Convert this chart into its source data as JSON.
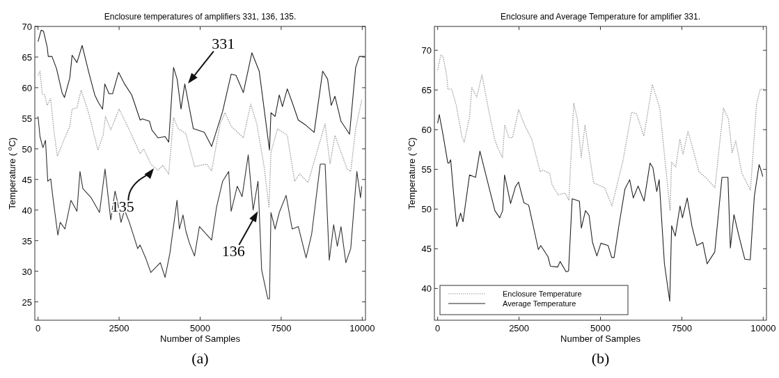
{
  "chart_data": [
    {
      "type": "line",
      "title": "Enclosure temperatures of amplifiers 331, 136, 135.",
      "xlabel": "Number of Samples",
      "ylabel": "Temperature ( $^{o}$C)",
      "xlim": [
        -100,
        10100
      ],
      "ylim": [
        22,
        70
      ],
      "xticks": [
        0,
        2500,
        5000,
        7500,
        10000
      ],
      "yticks": [
        25,
        30,
        35,
        40,
        45,
        50,
        55,
        60,
        65,
        70
      ],
      "grid": false,
      "legend": false,
      "annotations": [
        {
          "text": "331",
          "x": 4600,
          "y": 60.5
        },
        {
          "text": "135",
          "x": 3600,
          "y": 47
        },
        {
          "text": "136",
          "x": 6800,
          "y": 40
        },
        "(a)"
      ],
      "series": [
        {
          "color": "#222222",
          "line_style": "solid",
          "x": [
            0,
            95,
            170,
            280,
            315,
            430,
            570,
            740,
            815,
            980,
            1050,
            1200,
            1360,
            1570,
            1750,
            1860,
            1990,
            2060,
            2190,
            2300,
            2485,
            2670,
            2890,
            3150,
            3220,
            3440,
            3510,
            3700,
            3920,
            4030,
            4180,
            4290,
            4410,
            4526,
            4790,
            5128,
            5354,
            5693,
            5956,
            6107,
            6333,
            6596,
            6822,
            7139,
            7184,
            7312,
            7440,
            7538,
            7688,
            7839,
            8027,
            8253,
            8517,
            8780,
            8931,
            9044,
            9157,
            9345,
            9608,
            9797,
            9910,
            10080
          ],
          "values": [
            67.5,
            69.4,
            69.2,
            66.7,
            65.1,
            65.1,
            63.1,
            59.2,
            58.4,
            61.6,
            65.3,
            64.1,
            66.9,
            62.4,
            58.8,
            57.6,
            56.5,
            60.6,
            59.0,
            59.0,
            62.5,
            60.6,
            58.8,
            54.7,
            54.9,
            54.5,
            53.1,
            51.8,
            52.0,
            51.1,
            63.3,
            61.4,
            56.5,
            60.6,
            53.3,
            52.7,
            50.4,
            56.1,
            62.2,
            62.0,
            59.2,
            65.7,
            62.7,
            49.8,
            55.9,
            55.3,
            58.8,
            56.9,
            59.8,
            57.6,
            54.7,
            53.9,
            52.7,
            62.7,
            61.4,
            57.1,
            58.6,
            54.5,
            52.4,
            63.3,
            65.1,
            65.1
          ]
        },
        {
          "color": "#999999",
          "line_style": "dotted",
          "x": [
            0,
            60,
            130,
            206,
            280,
            390,
            500,
            596,
            794,
            980,
            1050,
            1200,
            1330,
            1570,
            1846,
            2007,
            2080,
            2243,
            2500,
            2816,
            3150,
            3260,
            3480,
            3700,
            3850,
            4030,
            4180,
            4320,
            4563,
            4827,
            5203,
            5354,
            5617,
            5768,
            5956,
            6333,
            6559,
            6747,
            6973,
            7124,
            7184,
            7387,
            7688,
            7914,
            8065,
            8328,
            8554,
            8855,
            9006,
            9157,
            9533,
            9645,
            9797,
            9985
          ],
          "values": [
            62,
            62.7,
            59.0,
            58.8,
            57.1,
            58.2,
            52.5,
            48.8,
            51.4,
            53.7,
            56.5,
            56.7,
            59.6,
            55.7,
            49.8,
            52.2,
            55.3,
            53.1,
            56.5,
            53.1,
            49.2,
            50.0,
            47.5,
            46.5,
            47.3,
            45.9,
            55.1,
            53.3,
            52.5,
            47.1,
            47.5,
            46.4,
            54.1,
            55.9,
            53.7,
            51.8,
            57.3,
            54.1,
            47.1,
            40.4,
            49.4,
            53.3,
            52.2,
            44.7,
            45.9,
            44.5,
            48.6,
            54.1,
            47.5,
            52.2,
            46.7,
            46.3,
            53.3,
            58.0
          ]
        },
        {
          "color": "#333333",
          "line_style": "solid",
          "x": [
            0,
            60,
            150,
            230,
            300,
            390,
            460,
            610,
            684,
            830,
            1015,
            1200,
            1294,
            1382,
            1640,
            1897,
            2066,
            2243,
            2375,
            2449,
            2559,
            2669,
            2816,
            3074,
            3147,
            3331,
            3478,
            3772,
            3919,
            4066,
            4287,
            4360,
            4471,
            4563,
            4676,
            4827,
            4977,
            5354,
            5504,
            5693,
            5881,
            5956,
            6145,
            6295,
            6483,
            6634,
            6785,
            6898,
            7086,
            7139,
            7184,
            7312,
            7440,
            7651,
            7839,
            8027,
            8268,
            8441,
            8705,
            8855,
            8983,
            9118,
            9232,
            9345,
            9495,
            9645,
            9834,
            9947,
            9985
          ],
          "values": [
            55.3,
            52.0,
            50.2,
            51.4,
            44.7,
            45.1,
            42.0,
            35.9,
            38.0,
            36.9,
            41.6,
            39.8,
            46.3,
            43.5,
            42.0,
            39.6,
            46.7,
            38.4,
            43.1,
            41.4,
            38.0,
            40.0,
            38.0,
            33.7,
            34.3,
            32.0,
            29.8,
            31.4,
            29.0,
            32.9,
            41.6,
            36.9,
            39.2,
            36.5,
            34.5,
            32.5,
            37.3,
            35.1,
            40.4,
            44.7,
            46.3,
            39.8,
            43.9,
            42.2,
            49.0,
            40.0,
            44.7,
            30.2,
            25.5,
            25.5,
            39.6,
            36.9,
            39.6,
            42.4,
            36.9,
            37.3,
            32.2,
            36.1,
            47.5,
            47.5,
            31.8,
            37.6,
            34.1,
            37.3,
            31.4,
            33.7,
            46.3,
            42.0,
            43.9
          ]
        }
      ]
    },
    {
      "type": "line",
      "title": "Enclosure and Average Temperature for amplifier 331.",
      "xlabel": "Number of Samples",
      "ylabel": "Temperature ( $^{o}$C)",
      "xlim": [
        -100,
        10100
      ],
      "ylim": [
        36,
        73
      ],
      "xticks": [
        0,
        2500,
        5000,
        7500,
        10000
      ],
      "yticks": [
        40,
        45,
        50,
        55,
        60,
        65,
        70
      ],
      "grid": false,
      "legend": "bottom left",
      "annotations": [
        "(b)"
      ],
      "series": [
        {
          "name": "Enclosure Temperature",
          "color": "#999999",
          "line_style": "dotted",
          "x": [
            0,
            95,
            170,
            280,
            315,
            430,
            570,
            740,
            815,
            980,
            1050,
            1200,
            1360,
            1570,
            1750,
            1860,
            1990,
            2060,
            2190,
            2300,
            2485,
            2670,
            2890,
            3150,
            3220,
            3440,
            3510,
            3700,
            3920,
            4030,
            4180,
            4290,
            4410,
            4526,
            4790,
            5128,
            5354,
            5693,
            5956,
            6107,
            6333,
            6596,
            6822,
            7139,
            7184,
            7312,
            7440,
            7538,
            7688,
            7839,
            8027,
            8253,
            8517,
            8780,
            8931,
            9044,
            9157,
            9345,
            9608,
            9797,
            9910,
            10058
          ],
          "values": [
            67.5,
            69.4,
            69.2,
            66.7,
            65.1,
            65.1,
            63.1,
            59.2,
            58.4,
            61.6,
            65.3,
            64.1,
            66.9,
            62.4,
            58.8,
            57.6,
            56.5,
            60.6,
            59.0,
            59.0,
            62.5,
            60.6,
            58.8,
            54.7,
            54.9,
            54.5,
            53.1,
            51.8,
            52.0,
            51.1,
            63.3,
            61.4,
            56.5,
            60.6,
            53.3,
            52.7,
            50.4,
            56.1,
            62.2,
            62.0,
            59.2,
            65.7,
            62.7,
            49.8,
            55.9,
            55.3,
            58.8,
            56.9,
            59.8,
            57.6,
            54.7,
            53.9,
            52.7,
            62.7,
            61.4,
            57.1,
            58.6,
            54.5,
            52.4,
            63.3,
            65.1,
            65.1
          ]
        },
        {
          "name": "Average Temperature",
          "color": "#222222",
          "line_style": "solid",
          "x": [
            0,
            50,
            163,
            312,
            349,
            400,
            497,
            586,
            705,
            779,
            979,
            1165,
            1298,
            1610,
            1758,
            1906,
            1996,
            2055,
            2240,
            2389,
            2485,
            2648,
            2796,
            3093,
            3167,
            3390,
            3464,
            3687,
            3761,
            3947,
            4021,
            4132,
            4354,
            4414,
            4540,
            4651,
            4757,
            4890,
            5015,
            5236,
            5346,
            5420,
            5567,
            5751,
            5898,
            6009,
            6156,
            6340,
            6524,
            6612,
            6730,
            6804,
            6966,
            7128,
            7187,
            7298,
            7445,
            7519,
            7666,
            7813,
            7960,
            8144,
            8277,
            8512,
            8733,
            8917,
            8991,
            9101,
            9248,
            9433,
            9602,
            9727,
            9874,
            9948,
            9985
          ],
          "values": [
            60.8,
            61.9,
            59.4,
            55.8,
            55.8,
            56.2,
            51.6,
            47.8,
            49.5,
            48.4,
            54.3,
            54.0,
            57.3,
            52.2,
            49.8,
            48.9,
            49.8,
            54.3,
            50.7,
            52.8,
            53.4,
            50.8,
            50.5,
            44.9,
            45.4,
            44.0,
            42.8,
            42.7,
            43.4,
            42.1,
            42.2,
            51.3,
            51.0,
            47.6,
            49.8,
            49.2,
            45.8,
            44.1,
            45.7,
            45.4,
            43.9,
            43.9,
            47.9,
            52.5,
            53.7,
            51.4,
            52.9,
            51.0,
            55.8,
            55.2,
            52.2,
            53.7,
            43.1,
            38.4,
            47.9,
            46.6,
            50.4,
            48.9,
            51.4,
            47.8,
            45.4,
            45.8,
            43.1,
            44.6,
            54.0,
            54.0,
            45.1,
            49.3,
            46.7,
            43.7,
            43.6,
            51.6,
            55.6,
            54.7,
            54.1
          ]
        }
      ]
    }
  ]
}
